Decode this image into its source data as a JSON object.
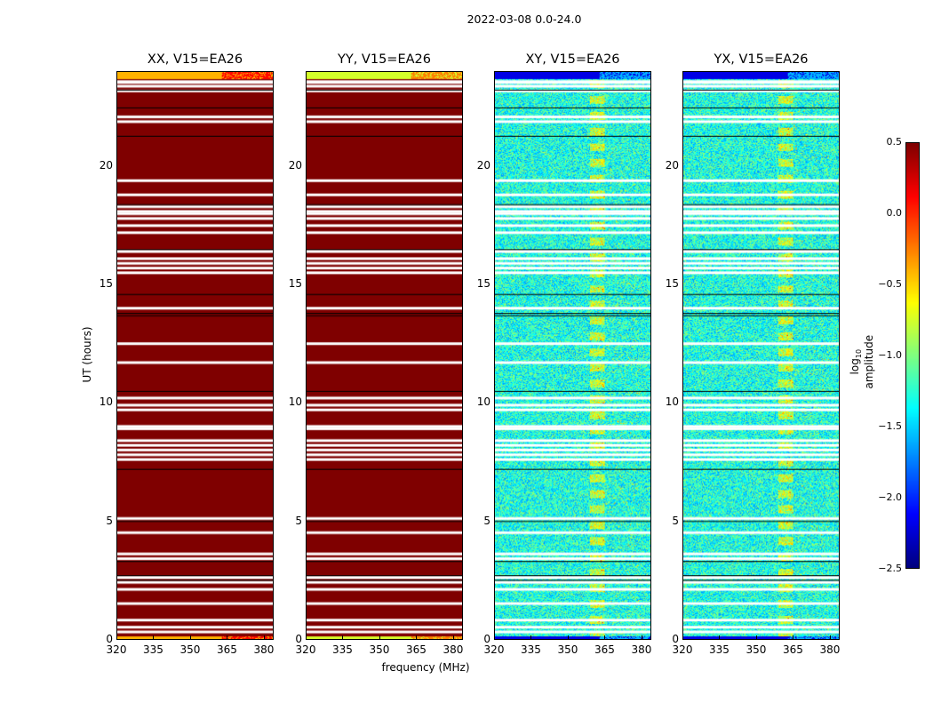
{
  "chart_data": {
    "type": "heatmap",
    "title": "2022-03-08 0.0-24.0",
    "xlabel": "frequency (MHz)",
    "ylabel": "UT (hours)",
    "xlim": [
      320,
      384
    ],
    "ylim": [
      0,
      24
    ],
    "xticks": [
      320,
      335,
      350,
      365,
      380
    ],
    "yticks": [
      0,
      5,
      10,
      15,
      20
    ],
    "panels": [
      {
        "title": "XX, V15=EA26",
        "typical_log_amplitude": 0.5,
        "edge_rows_log_amplitude": -0.4,
        "show_ylabel": true
      },
      {
        "title": "YY, V15=EA26",
        "typical_log_amplitude": 0.5,
        "edge_rows_log_amplitude": -0.75,
        "show_xlabel": true
      },
      {
        "title": "XY, V15=EA26",
        "typical_log_amplitude": -1.3,
        "edge_rows_log_amplitude": -2.2
      },
      {
        "title": "YX, V15=EA26",
        "typical_log_amplitude": -1.3,
        "edge_rows_log_amplitude": -2.2
      }
    ],
    "flagged_hours": [
      23.4,
      23.2,
      22.1,
      21.9,
      19.4,
      18.8,
      18.3,
      18.1,
      18.0,
      17.8,
      17.5,
      17.2,
      16.4,
      16.1,
      15.9,
      15.7,
      15.5,
      14.0,
      12.5,
      11.7,
      10.2,
      9.9,
      9.7,
      9.0,
      8.9,
      8.4,
      8.2,
      8.0,
      7.8,
      7.6,
      5.1,
      4.5,
      3.6,
      3.4,
      2.6,
      2.4,
      2.1,
      1.5,
      0.8,
      0.5,
      0.3
    ],
    "segment_boundaries_hours": [
      23.25,
      22.5,
      21.3,
      18.4,
      16.5,
      14.6,
      13.8,
      13.7,
      10.5,
      7.2,
      5.0,
      3.3,
      2.7,
      2.5
    ],
    "colorbar": {
      "label": "log10 amplitude",
      "label_main": "log",
      "label_sub": "10",
      "label_rest": " amplitude",
      "range": [
        -2.5,
        0.5
      ],
      "ticks": [
        "0.5",
        "0.0",
        "−0.5",
        "−1.0",
        "−1.5",
        "−2.0",
        "−2.5"
      ],
      "colormap": "jet"
    }
  }
}
